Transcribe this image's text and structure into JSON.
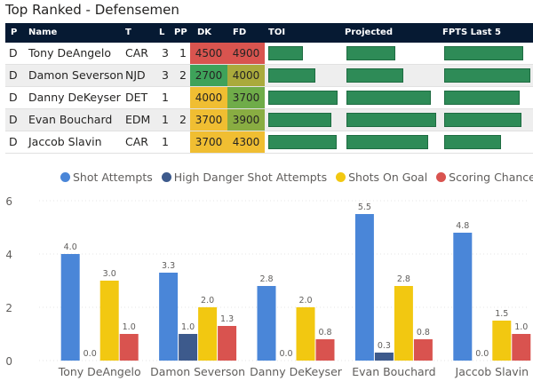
{
  "title": "Top Ranked - Defensemen",
  "table": {
    "columns": [
      "P",
      "Name",
      "T",
      "L",
      "PP",
      "DK",
      "FD",
      "TOI",
      "Projected",
      "FPTS Last 5"
    ],
    "rows": [
      {
        "p": "D",
        "name": "Tony DeAngelo",
        "team": "CAR",
        "line": "3",
        "pp": "1",
        "dk": "4500",
        "fd": "4900",
        "dk_color": "#d9544f",
        "fd_color": "#d9544f",
        "toi": 0.47,
        "projected": 0.52,
        "fpts": 0.89
      },
      {
        "p": "D",
        "name": "Damon Severson",
        "team": "NJD",
        "line": "3",
        "pp": "2",
        "dk": "2700",
        "fd": "4000",
        "dk_color": "#3ea25a",
        "fd_color": "#aaaa3c",
        "toi": 0.63,
        "projected": 0.6,
        "fpts": 0.97
      },
      {
        "p": "D",
        "name": "Danny DeKeyser",
        "team": "DET",
        "line": "1",
        "pp": "",
        "dk": "4000",
        "fd": "3700",
        "dk_color": "#f0be32",
        "fd_color": "#6fac49",
        "toi": 0.93,
        "projected": 0.9,
        "fpts": 0.85
      },
      {
        "p": "D",
        "name": "Evan Bouchard",
        "team": "EDM",
        "line": "1",
        "pp": "2",
        "dk": "3700",
        "fd": "3900",
        "dk_color": "#f0be32",
        "fd_color": "#89ad42",
        "toi": 0.85,
        "projected": 0.95,
        "fpts": 0.87
      },
      {
        "p": "D",
        "name": "Jaccob Slavin",
        "team": "CAR",
        "line": "1",
        "pp": "",
        "dk": "3700",
        "fd": "4300",
        "dk_color": "#f0be32",
        "fd_color": "#f0be32",
        "toi": 0.92,
        "projected": 0.87,
        "fpts": 0.64
      }
    ]
  },
  "colors": {
    "header_bg": "#061a33",
    "bar_green": "#2e8b57",
    "series": [
      "#4a86d8",
      "#3d5a8c",
      "#f2c811",
      "#d9534f"
    ]
  },
  "chart_data": {
    "type": "bar",
    "title": "",
    "categories": [
      "Tony DeAngelo",
      "Damon Severson",
      "Danny DeKeyser",
      "Evan Bouchard",
      "Jaccob Slavin"
    ],
    "series": [
      {
        "name": "Shot Attempts",
        "values": [
          4.0,
          3.3,
          2.8,
          5.5,
          4.8
        ]
      },
      {
        "name": "High Danger Shot Attempts",
        "values": [
          0.0,
          1.0,
          0.0,
          0.3,
          0.0
        ]
      },
      {
        "name": "Shots On Goal",
        "values": [
          3.0,
          2.0,
          2.0,
          2.8,
          1.5
        ]
      },
      {
        "name": "Scoring Chances",
        "values": [
          1.0,
          1.3,
          0.8,
          0.8,
          1.0
        ]
      }
    ],
    "value_labels": [
      [
        "4.0",
        "3.3",
        "2.8",
        "5.5",
        "4.8"
      ],
      [
        "0.0",
        "1.0",
        "0.0",
        "0.3",
        "0.0"
      ],
      [
        "3.0",
        "2.0",
        "2.0",
        "2.8",
        "1.5"
      ],
      [
        "1.0",
        "1.3",
        "0.8",
        "0.8",
        "1.0"
      ]
    ],
    "yticks": [
      "0",
      "2",
      "4",
      "6"
    ],
    "ylim": [
      0,
      6
    ],
    "grid": true,
    "legend_position": "top"
  }
}
